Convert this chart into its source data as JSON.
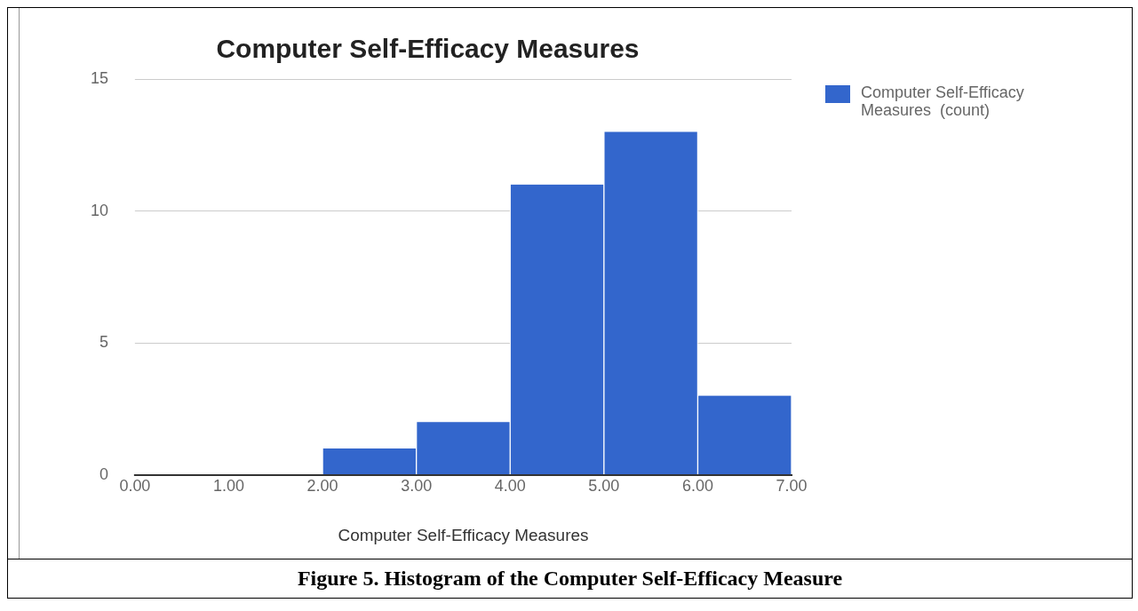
{
  "chart_data": {
    "type": "histogram",
    "title": "Computer Self-Efficacy Measures",
    "xlabel": "Computer Self-Efficacy Measures",
    "bins": [
      0,
      1,
      2,
      3,
      4,
      5,
      6,
      7
    ],
    "series": [
      {
        "name": "Computer Self-Efficacy Measures  (count)",
        "color": "#3366cc",
        "values": [
          0,
          0,
          1,
          2,
          11,
          13,
          3
        ]
      }
    ],
    "xlim": [
      0,
      7
    ],
    "xticks": [
      {
        "value": 0,
        "label": "0.00"
      },
      {
        "value": 1,
        "label": "1.00"
      },
      {
        "value": 2,
        "label": "2.00"
      },
      {
        "value": 3,
        "label": "3.00"
      },
      {
        "value": 4,
        "label": "4.00"
      },
      {
        "value": 5,
        "label": "5.00"
      },
      {
        "value": 6,
        "label": "6.00"
      },
      {
        "value": 7,
        "label": "7.00"
      }
    ],
    "ylim": [
      0,
      15
    ],
    "yticks": [
      0,
      5,
      10,
      15
    ],
    "grid": "y",
    "legend": "top right",
    "annotations": [
      "Figure 5.  Histogram of the Computer Self-Efficacy Measure"
    ]
  }
}
